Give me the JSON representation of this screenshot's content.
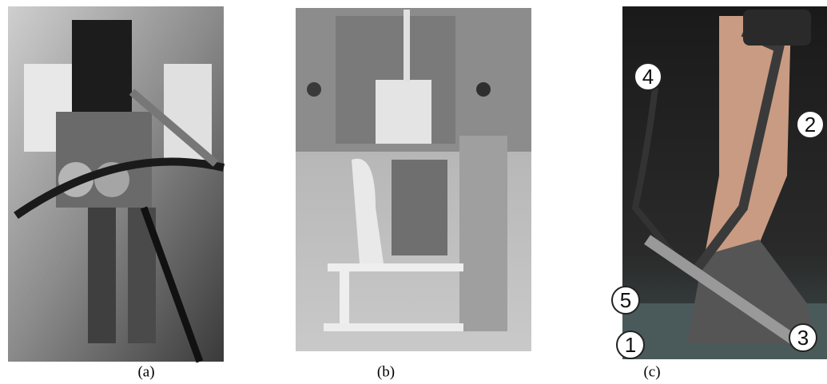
{
  "figure": {
    "panels": [
      {
        "caption": "(a)"
      },
      {
        "caption": "(b)"
      },
      {
        "caption": "(c)",
        "callouts": [
          "4",
          "2",
          "5",
          "1",
          "3"
        ]
      }
    ]
  }
}
